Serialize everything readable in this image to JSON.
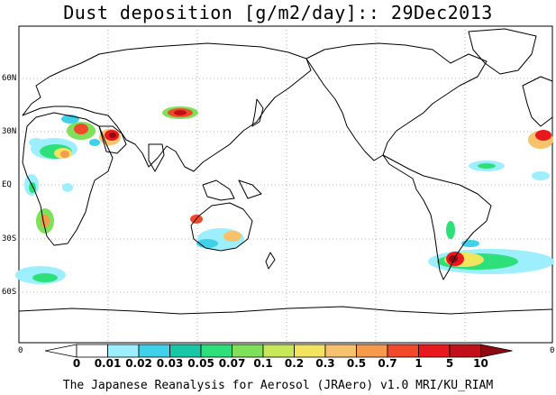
{
  "title": "Dust deposition [g/m2/day]:: 29Dec2013",
  "lat_labels": [
    "60N",
    "30N",
    "EQ",
    "30S",
    "60S"
  ],
  "edge_labels": {
    "left": "0",
    "right": "0"
  },
  "colorbar": {
    "labels": [
      "0",
      "0.01",
      "0.02",
      "0.03",
      "0.05",
      "0.07",
      "0.1",
      "0.2",
      "0.3",
      "0.5",
      "0.7",
      "1",
      "5",
      "10"
    ],
    "colors": [
      "#ffffff",
      "#9deeff",
      "#3fd0ea",
      "#17c7a7",
      "#2ee07a",
      "#7fe05a",
      "#c8e85a",
      "#f3e460",
      "#f7c26b",
      "#f59b4b",
      "#f04a2a",
      "#e8191c",
      "#c0101a",
      "#8e0a10"
    ]
  },
  "footer": "The Japanese Reanalysis for Aerosol (JRAero) v1.0 MRI/KU_RIAM"
}
